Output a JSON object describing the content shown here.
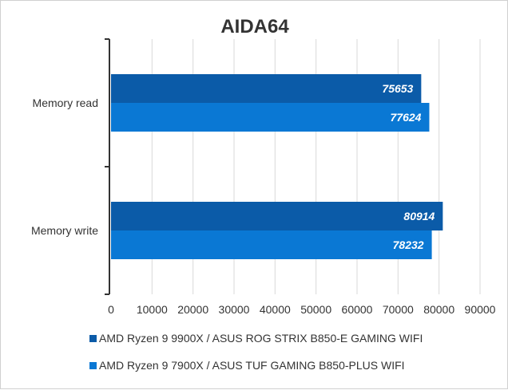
{
  "chart_data": {
    "type": "bar",
    "orientation": "horizontal",
    "title": "AIDA64",
    "categories": [
      "Memory read",
      "Memory write"
    ],
    "series": [
      {
        "name": "AMD Ryzen 9 9900X / ASUS ROG STRIX B850-E GAMING WIFI",
        "values": [
          75653,
          80914
        ],
        "color": "#0b5ba8"
      },
      {
        "name": "AMD Ryzen 9 7900X / ASUS TUF GAMING B850-PLUS WIFI",
        "values": [
          77624,
          78232
        ],
        "color": "#0a78d4"
      }
    ],
    "xlim": [
      0,
      90000
    ],
    "xticks": [
      "0",
      "10000",
      "20000",
      "30000",
      "40000",
      "50000",
      "60000",
      "70000",
      "80000",
      "90000"
    ],
    "grid": "vertical",
    "legend_position": "bottom"
  }
}
